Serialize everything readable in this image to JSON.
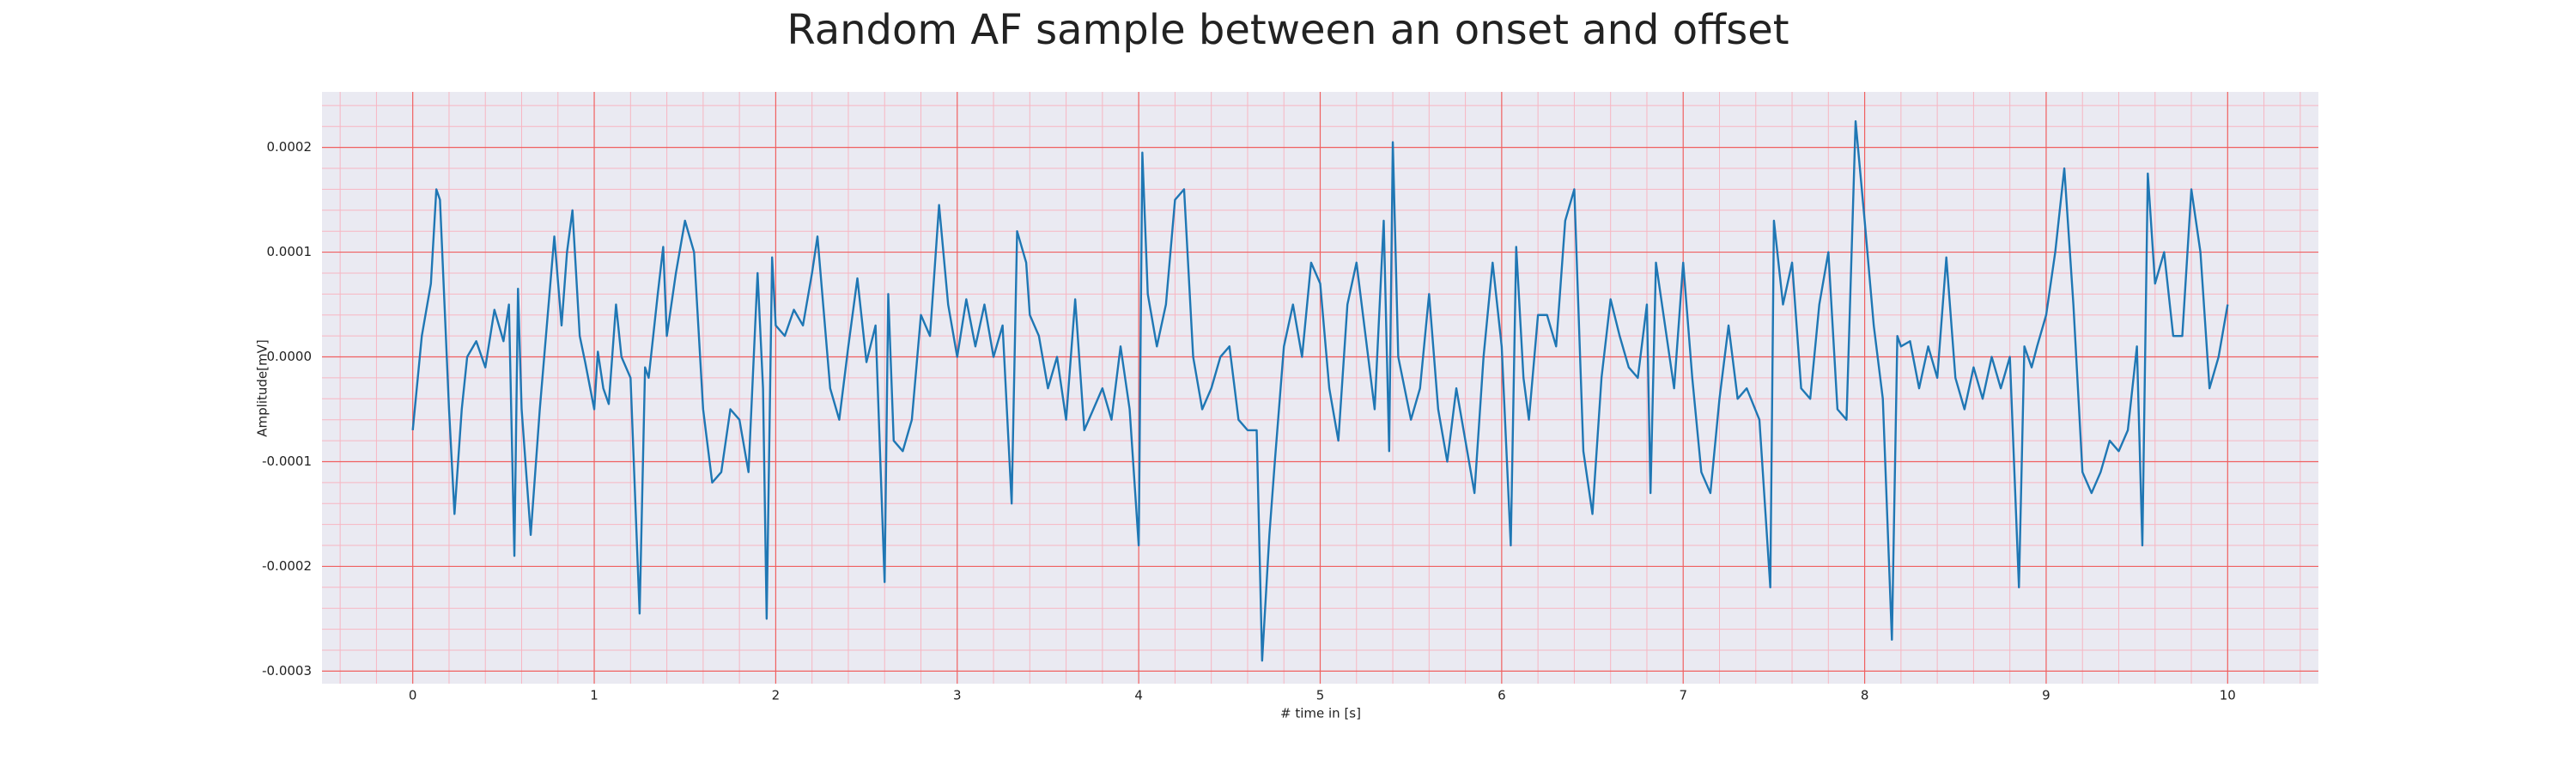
{
  "chart_data": {
    "type": "line",
    "title": "Random AF sample between an onset and offset",
    "xlabel": "# time in [s]",
    "ylabel": "Amplitude[mV]",
    "color": "#1f77b4",
    "grid": true,
    "minor_grid": true,
    "xlim": [
      -0.5,
      10.5
    ],
    "ylim": [
      -0.000312,
      0.000253
    ],
    "xticks": [
      0,
      1,
      2,
      3,
      4,
      5,
      6,
      7,
      8,
      9,
      10
    ],
    "yticks": [
      -0.0003,
      -0.0002,
      -0.0001,
      {
        "value": 0,
        "label": "0.0000"
      },
      0.0001,
      0.0002
    ],
    "x": [
      0,
      0.05,
      0.1,
      0.13,
      0.15,
      0.2,
      0.23,
      0.27,
      0.3,
      0.35,
      0.4,
      0.45,
      0.5,
      0.53,
      0.56,
      0.58,
      0.6,
      0.65,
      0.7,
      0.78,
      0.82,
      0.85,
      0.88,
      0.92,
      0.95,
      1.0,
      1.02,
      1.05,
      1.08,
      1.12,
      1.15,
      1.2,
      1.25,
      1.28,
      1.3,
      1.35,
      1.38,
      1.4,
      1.45,
      1.5,
      1.55,
      1.6,
      1.65,
      1.7,
      1.75,
      1.8,
      1.85,
      1.9,
      1.93,
      1.95,
      1.98,
      2.0,
      2.05,
      2.1,
      2.15,
      2.2,
      2.23,
      2.3,
      2.35,
      2.4,
      2.45,
      2.5,
      2.55,
      2.6,
      2.62,
      2.65,
      2.7,
      2.75,
      2.8,
      2.85,
      2.9,
      2.95,
      3.0,
      3.05,
      3.1,
      3.15,
      3.2,
      3.25,
      3.3,
      3.33,
      3.38,
      3.4,
      3.45,
      3.5,
      3.55,
      3.6,
      3.65,
      3.7,
      3.75,
      3.8,
      3.85,
      3.9,
      3.95,
      4.0,
      4.02,
      4.05,
      4.1,
      4.15,
      4.2,
      4.25,
      4.3,
      4.35,
      4.4,
      4.45,
      4.5,
      4.55,
      4.6,
      4.65,
      4.68,
      4.72,
      4.75,
      4.8,
      4.85,
      4.9,
      4.95,
      5.0,
      5.05,
      5.1,
      5.15,
      5.2,
      5.25,
      5.3,
      5.35,
      5.38,
      5.4,
      5.43,
      5.5,
      5.55,
      5.6,
      5.65,
      5.7,
      5.75,
      5.8,
      5.85,
      5.9,
      5.95,
      6.0,
      6.05,
      6.08,
      6.12,
      6.15,
      6.2,
      6.25,
      6.3,
      6.35,
      6.4,
      6.45,
      6.5,
      6.55,
      6.6,
      6.65,
      6.7,
      6.75,
      6.8,
      6.82,
      6.85,
      6.9,
      6.95,
      7.0,
      7.05,
      7.1,
      7.15,
      7.2,
      7.25,
      7.3,
      7.35,
      7.42,
      7.48,
      7.5,
      7.55,
      7.6,
      7.65,
      7.7,
      7.75,
      7.8,
      7.85,
      7.9,
      7.95,
      8.0,
      8.05,
      8.1,
      8.15,
      8.18,
      8.2,
      8.25,
      8.3,
      8.35,
      8.4,
      8.45,
      8.5,
      8.55,
      8.6,
      8.65,
      8.7,
      8.75,
      8.8,
      8.85,
      8.88,
      8.92,
      8.95,
      9.0,
      9.05,
      9.1,
      9.15,
      9.2,
      9.25,
      9.3,
      9.35,
      9.4,
      9.45,
      9.5,
      9.53,
      9.56,
      9.6,
      9.65,
      9.7,
      9.75,
      9.8,
      9.85,
      9.9,
      9.95,
      10.0
    ],
    "values": [
      -7e-05,
      2e-05,
      7e-05,
      0.00016,
      0.00015,
      -5e-05,
      -0.00015,
      -5e-05,
      0,
      1.5e-05,
      -1e-05,
      4.5e-05,
      1.5e-05,
      5e-05,
      -0.00019,
      6.5e-05,
      -5e-05,
      -0.00017,
      -5e-05,
      0.000115,
      3e-05,
      0.0001,
      0.00014,
      2e-05,
      -5e-06,
      -5e-05,
      5e-06,
      -3e-05,
      -4.5e-05,
      5e-05,
      0,
      -2e-05,
      -0.000245,
      -1e-05,
      -2e-05,
      6e-05,
      0.000105,
      2e-05,
      8e-05,
      0.00013,
      0.0001,
      -5e-05,
      -0.00012,
      -0.00011,
      -5e-05,
      -6e-05,
      -0.00011,
      8e-05,
      -3e-05,
      -0.00025,
      9.5e-05,
      3e-05,
      2e-05,
      4.5e-05,
      3e-05,
      8e-05,
      0.000115,
      -3e-05,
      -6e-05,
      1e-05,
      7.5e-05,
      -5e-06,
      3e-05,
      -0.000215,
      6e-05,
      -8e-05,
      -9e-05,
      -6e-05,
      4e-05,
      2e-05,
      0.000145,
      5e-05,
      0,
      5.5e-05,
      1e-05,
      5e-05,
      0,
      3e-05,
      -0.00014,
      0.00012,
      9e-05,
      4e-05,
      2e-05,
      -3e-05,
      0,
      -6e-05,
      5.5e-05,
      -7e-05,
      -5e-05,
      -3e-05,
      -6e-05,
      1e-05,
      -5e-05,
      -0.00018,
      0.000195,
      6e-05,
      1e-05,
      5e-05,
      0.00015,
      0.00016,
      0,
      -5e-05,
      -3e-05,
      0,
      1e-05,
      -6e-05,
      -7e-05,
      -7e-05,
      -0.00029,
      -0.00017,
      -0.0001,
      1e-05,
      5e-05,
      0,
      9e-05,
      7e-05,
      -3e-05,
      -8e-05,
      5e-05,
      9e-05,
      2e-05,
      -5e-05,
      0.00013,
      -9e-05,
      0.000205,
      0,
      -6e-05,
      -3e-05,
      6e-05,
      -5e-05,
      -0.0001,
      -3e-05,
      -8e-05,
      -0.00013,
      0,
      9e-05,
      1e-05,
      -0.00018,
      0.000105,
      -2e-05,
      -6e-05,
      4e-05,
      4e-05,
      1e-05,
      0.00013,
      0.00016,
      -9e-05,
      -0.00015,
      -2e-05,
      5.5e-05,
      2e-05,
      -1e-05,
      -2e-05,
      5e-05,
      -0.00013,
      9e-05,
      3e-05,
      -3e-05,
      9e-05,
      -2e-05,
      -0.00011,
      -0.00013,
      -4e-05,
      3e-05,
      -4e-05,
      -3e-05,
      -6e-05,
      -0.00022,
      0.00013,
      5e-05,
      9e-05,
      -3e-05,
      -4e-05,
      5e-05,
      0.0001,
      -5e-05,
      -6e-05,
      0.000225,
      0.00013,
      3e-05,
      -4e-05,
      -0.00027,
      2e-05,
      1e-05,
      1.5e-05,
      -3e-05,
      1e-05,
      -2e-05,
      9.5e-05,
      -2e-05,
      -5e-05,
      -1e-05,
      -4e-05,
      0,
      -3e-05,
      0,
      -0.00022,
      1e-05,
      -1e-05,
      1e-05,
      4e-05,
      0.0001,
      0.00018,
      5e-05,
      -0.00011,
      -0.00013,
      -0.00011,
      -8e-05,
      -9e-05,
      -7e-05,
      1e-05,
      -0.00018,
      0.000175,
      7e-05,
      0.0001,
      2e-05,
      2e-05,
      0.00016,
      0.0001,
      -3e-05,
      0,
      5e-05
    ]
  }
}
